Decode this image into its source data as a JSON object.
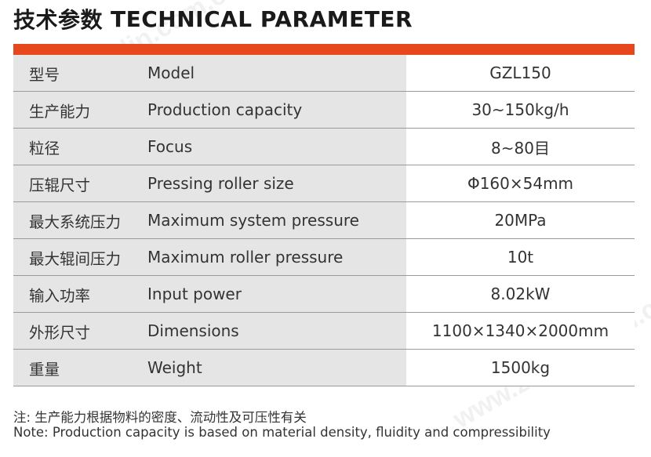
{
  "header": {
    "title_cn": "技术参数",
    "title_en": "TECHNICAL PARAMETER"
  },
  "colors": {
    "accent": "#e6471c",
    "label_bg": "#e5e5e5",
    "value_bg": "#ffffff",
    "divider": "#9a9a9a"
  },
  "rows": [
    {
      "cn": "型号",
      "en": "Model",
      "value": "GZL150"
    },
    {
      "cn": "生产能力",
      "en": "Production capacity",
      "value": "30~150kg/h"
    },
    {
      "cn": "粒径",
      "en": "Focus",
      "value": "8~80目"
    },
    {
      "cn": "压辊尺寸",
      "en": "Pressing roller size",
      "value": "Φ160×54mm"
    },
    {
      "cn": "最大系统压力",
      "en": "Maximum system pressure",
      "value": "20MPa"
    },
    {
      "cn": "最大辊间压力",
      "en": "Maximum roller pressure",
      "value": "10t"
    },
    {
      "cn": "输入功率",
      "en": "Input power",
      "value": "8.02kW"
    },
    {
      "cn": "外形尺寸",
      "en": "Dimensions",
      "value": "1100×1340×2000mm"
    },
    {
      "cn": "重量",
      "en": "Weight",
      "value": "1500kg"
    }
  ],
  "notes": {
    "cn": "注: 生产能力根据物料的密度、流动性及可压性有关",
    "en": "Note: Production capacity is based on material density, fluidity and compressibility"
  }
}
